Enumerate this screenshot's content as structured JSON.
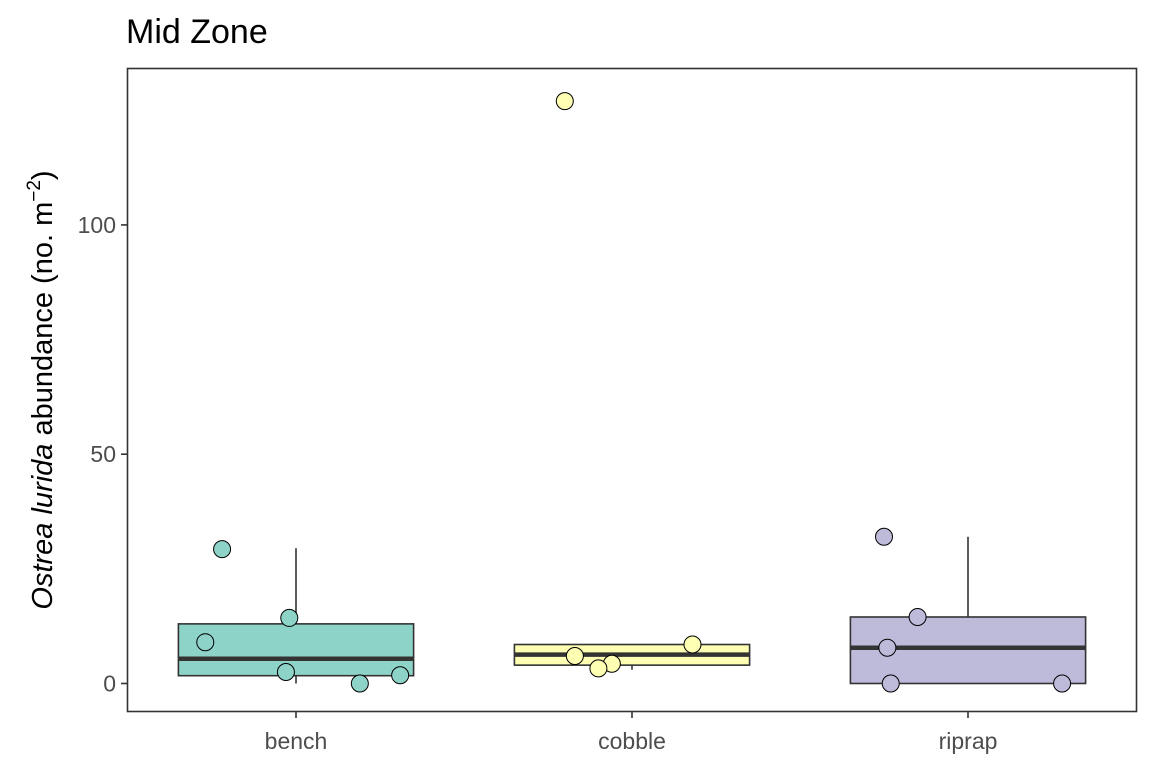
{
  "chart_data": {
    "type": "box",
    "title": "Mid Zone",
    "xlabel": "",
    "ylabel": {
      "species": "Ostrea lurida",
      "text": "abundance",
      "unit_prefix": "(no. m",
      "unit_exponent": "−2",
      "unit_suffix": ")"
    },
    "categories": [
      "bench",
      "cobble",
      "riprap"
    ],
    "colors": [
      "#8dd3c7",
      "#ffffb3",
      "#bebada"
    ],
    "ylim": [
      -6,
      134
    ],
    "yticks": [
      0,
      50,
      100
    ],
    "grid": false,
    "legend": "none",
    "boxes": [
      {
        "category": "bench",
        "q1": 1.7,
        "median": 5.4,
        "q3": 13.0,
        "whisker_low": 0.0,
        "whisker_high": 29.5
      },
      {
        "category": "cobble",
        "q1": 4.0,
        "median": 6.3,
        "q3": 8.5,
        "whisker_low": 3.0,
        "whisker_high": 8.5
      },
      {
        "category": "riprap",
        "q1": 0.0,
        "median": 7.8,
        "q3": 14.5,
        "whisker_low": 0.0,
        "whisker_high": 32.0
      }
    ],
    "points": [
      {
        "category": "bench",
        "y": 29.3,
        "jitter": -0.22
      },
      {
        "category": "bench",
        "y": 14.3,
        "jitter": -0.02
      },
      {
        "category": "bench",
        "y": 9.0,
        "jitter": -0.27
      },
      {
        "category": "bench",
        "y": 2.5,
        "jitter": -0.03
      },
      {
        "category": "bench",
        "y": 1.8,
        "jitter": 0.31
      },
      {
        "category": "bench",
        "y": 0.0,
        "jitter": 0.19
      },
      {
        "category": "cobble",
        "y": 127.0,
        "jitter": -0.2
      },
      {
        "category": "cobble",
        "y": 8.5,
        "jitter": 0.18
      },
      {
        "category": "cobble",
        "y": 6.0,
        "jitter": -0.17
      },
      {
        "category": "cobble",
        "y": 4.3,
        "jitter": -0.06
      },
      {
        "category": "cobble",
        "y": 3.3,
        "jitter": -0.1
      },
      {
        "category": "riprap",
        "y": 32.0,
        "jitter": -0.25
      },
      {
        "category": "riprap",
        "y": 14.5,
        "jitter": -0.15
      },
      {
        "category": "riprap",
        "y": 7.8,
        "jitter": -0.24
      },
      {
        "category": "riprap",
        "y": 0.0,
        "jitter": -0.23
      },
      {
        "category": "riprap",
        "y": 0.0,
        "jitter": 0.28
      }
    ]
  }
}
